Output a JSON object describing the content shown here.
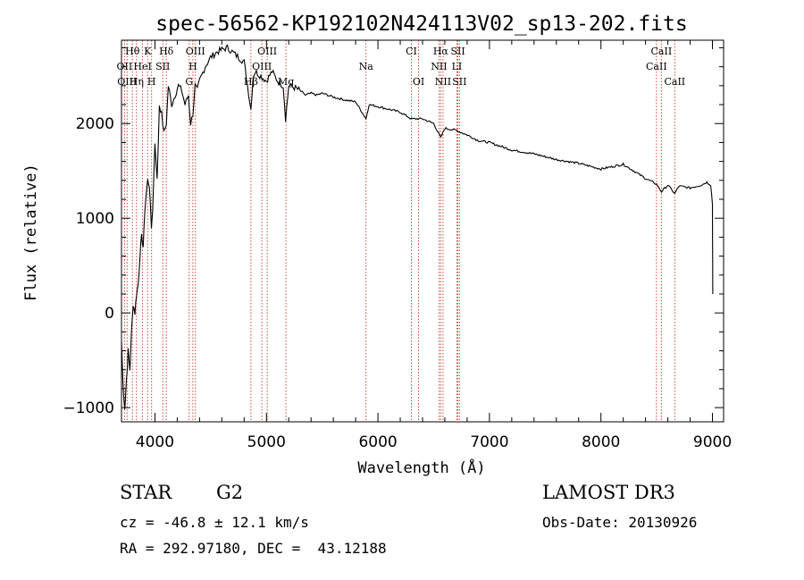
{
  "chart_data": {
    "type": "line",
    "title": "spec-56562-KP192102N424113V02_sp13-202.fits",
    "xlabel": "Wavelength (Å)",
    "ylabel": "Flux (relative)",
    "xlim": [
      3700,
      9100
    ],
    "ylim": [
      -1150,
      2880
    ],
    "xticks": [
      4000,
      5000,
      6000,
      7000,
      8000,
      9000
    ],
    "yticks": [
      -1000,
      0,
      1000,
      2000
    ],
    "series": [
      {
        "name": "flux",
        "x": [
          3700,
          3715,
          3730,
          3745,
          3760,
          3775,
          3790,
          3805,
          3820,
          3835,
          3850,
          3865,
          3880,
          3895,
          3910,
          3925,
          3935,
          3950,
          3968,
          3980,
          4000,
          4020,
          4040,
          4060,
          4080,
          4102,
          4120,
          4150,
          4180,
          4210,
          4240,
          4270,
          4300,
          4320,
          4340,
          4360,
          4380,
          4400,
          4450,
          4500,
          4550,
          4600,
          4650,
          4700,
          4750,
          4800,
          4861,
          4880,
          4900,
          4950,
          5000,
          5050,
          5100,
          5150,
          5172,
          5200,
          5250,
          5300,
          5350,
          5400,
          5450,
          5500,
          5600,
          5700,
          5800,
          5893,
          5920,
          6000,
          6100,
          6200,
          6300,
          6400,
          6500,
          6563,
          6600,
          6700,
          6800,
          6900,
          7000,
          7200,
          7400,
          7600,
          7800,
          8000,
          8200,
          8400,
          8498,
          8542,
          8600,
          8662,
          8700,
          8800,
          8900,
          8950,
          8985,
          9000,
          9003
        ],
        "y": [
          -300,
          -800,
          -1000,
          -700,
          -400,
          -600,
          -200,
          100,
          0,
          200,
          300,
          600,
          800,
          700,
          1100,
          1300,
          1400,
          1350,
          900,
          1100,
          1800,
          1400,
          2200,
          2100,
          1900,
          2000,
          2400,
          2200,
          2300,
          2400,
          2350,
          2200,
          2300,
          2000,
          2100,
          2400,
          2350,
          2450,
          2600,
          2700,
          2750,
          2780,
          2800,
          2750,
          2700,
          2650,
          2150,
          2500,
          2550,
          2500,
          2450,
          2550,
          2450,
          2400,
          2050,
          2400,
          2380,
          2350,
          2300,
          2320,
          2300,
          2320,
          2280,
          2250,
          2230,
          2050,
          2200,
          2180,
          2150,
          2120,
          2050,
          2050,
          2000,
          1850,
          1950,
          1930,
          1880,
          1820,
          1800,
          1720,
          1680,
          1620,
          1580,
          1520,
          1570,
          1420,
          1360,
          1280,
          1350,
          1260,
          1340,
          1320,
          1350,
          1380,
          1350,
          1150,
          200
        ]
      }
    ],
    "line_labels": [
      {
        "text": "Hθ",
        "x": 3798,
        "row": 1
      },
      {
        "text": "K",
        "x": 3934,
        "row": 1
      },
      {
        "text": "Hδ",
        "x": 4102,
        "row": 1
      },
      {
        "text": "OIII",
        "x": 4363,
        "row": 1
      },
      {
        "text": "OIII",
        "x": 5007,
        "row": 1
      },
      {
        "text": "CI",
        "x": 6300,
        "row": 1
      },
      {
        "text": "Hα",
        "x": 6563,
        "row": 1
      },
      {
        "text": "SII",
        "x": 6717,
        "row": 1
      },
      {
        "text": "CaII",
        "x": 8542,
        "row": 1
      },
      {
        "text": "OII",
        "x": 3727,
        "row": 2
      },
      {
        "text": "HeI",
        "x": 3889,
        "row": 2
      },
      {
        "text": "SII",
        "x": 4070,
        "row": 2
      },
      {
        "text": "H",
        "x": 4340,
        "row": 2
      },
      {
        "text": "OIII",
        "x": 4959,
        "row": 2
      },
      {
        "text": "Na",
        "x": 5893,
        "row": 2
      },
      {
        "text": "NII",
        "x": 6548,
        "row": 2
      },
      {
        "text": "LI",
        "x": 6708,
        "row": 2
      },
      {
        "text": "CaII",
        "x": 8498,
        "row": 2
      },
      {
        "text": "OIII",
        "x": 3750,
        "row": 3
      },
      {
        "text": "Hη",
        "x": 3835,
        "row": 3
      },
      {
        "text": "H",
        "x": 3970,
        "row": 3
      },
      {
        "text": "G",
        "x": 4307,
        "row": 3
      },
      {
        "text": "Hβ",
        "x": 4861,
        "row": 3
      },
      {
        "text": "Mg",
        "x": 5175,
        "row": 3
      },
      {
        "text": "OI",
        "x": 6364,
        "row": 3
      },
      {
        "text": "NII",
        "x": 6584,
        "row": 3
      },
      {
        "text": "SII",
        "x": 6731,
        "row": 3
      },
      {
        "text": "CaII",
        "x": 8662,
        "row": 3
      }
    ],
    "line_marks": [
      3727,
      3750,
      3798,
      3835,
      3889,
      3934,
      3970,
      4070,
      4102,
      4307,
      4340,
      4363,
      4861,
      4959,
      5007,
      5175,
      5893,
      6300,
      6364,
      6548,
      6563,
      6584,
      6708,
      6717,
      6731,
      8498,
      8542,
      8662
    ]
  },
  "info": {
    "object_type": "STAR",
    "subclass": "G2",
    "survey": "LAMOST DR3",
    "redshift": "cz = -46.8 ± 12.1 km/s",
    "obs_date": "Obs-Date: 20130926",
    "coords": "RA = 292.97180, DEC =  43.12188"
  }
}
